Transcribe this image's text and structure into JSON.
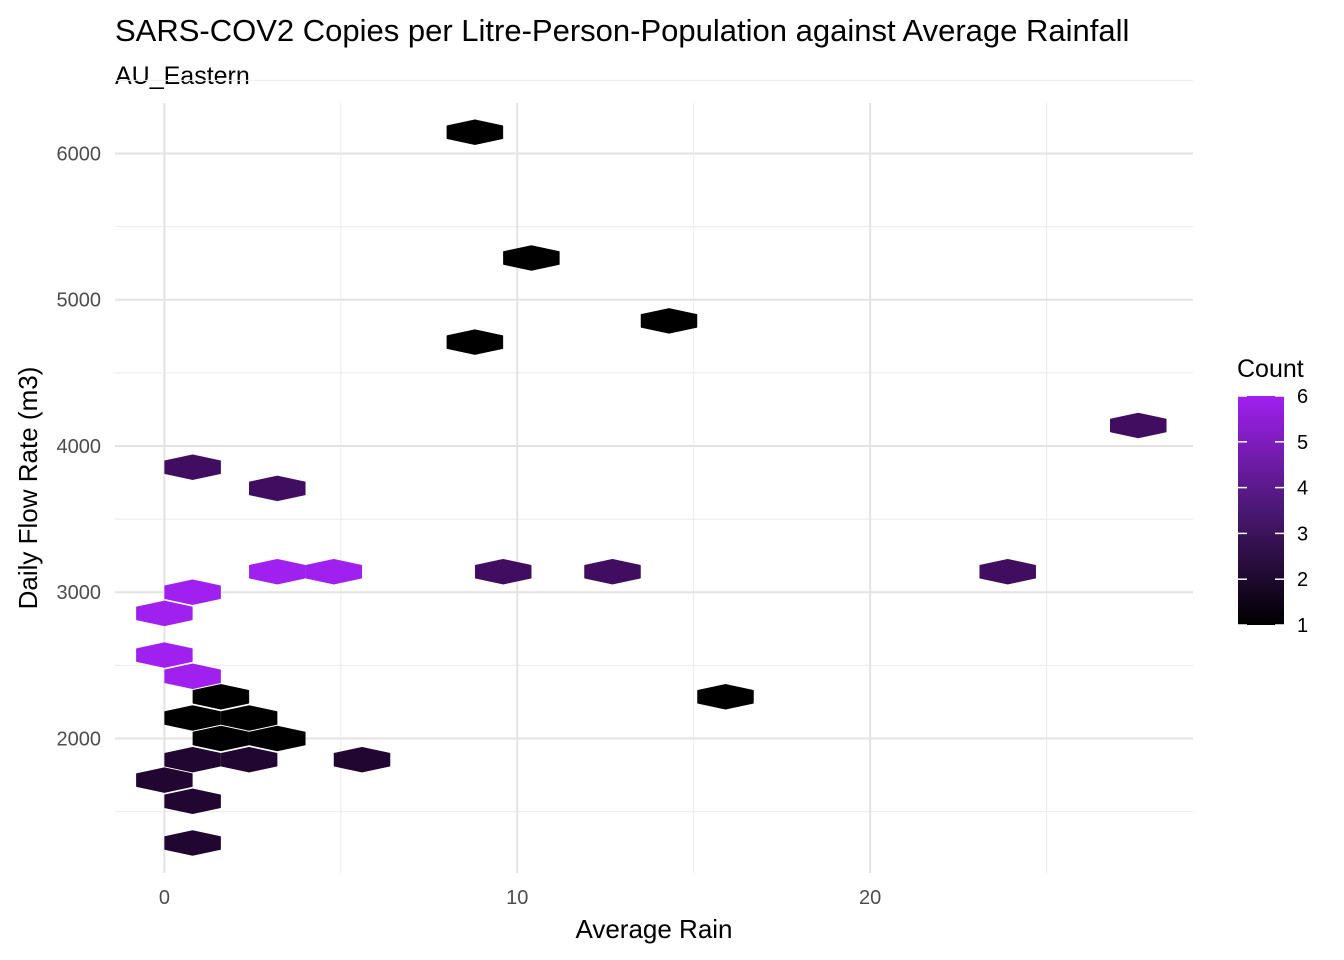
{
  "chart_data": {
    "type": "hexbin",
    "title": "SARS-COV2 Copies per Litre-Person-Population against Average Rainfall",
    "subtitle": "AU_Eastern",
    "xlabel": "Average Rain",
    "ylabel": "Daily Flow Rate (m3)",
    "xlim": [
      -1.4,
      29.15
    ],
    "ylim": [
      1080,
      6345
    ],
    "x_ticks": [
      0,
      10,
      20
    ],
    "y_ticks": [
      2000,
      3000,
      4000,
      5000,
      6000
    ],
    "grid": true,
    "legend": {
      "title": "Count",
      "position": "right",
      "min": 1,
      "max": 6,
      "ticks": [
        1,
        2,
        3,
        4,
        5,
        6
      ],
      "color_low": "#000000",
      "color_high": "#a020f0"
    },
    "bins": [
      {
        "x": 8.8,
        "y": 6145,
        "count": 1
      },
      {
        "x": 10.4,
        "y": 5285,
        "count": 1
      },
      {
        "x": 14.3,
        "y": 4855,
        "count": 1
      },
      {
        "x": 8.8,
        "y": 4710,
        "count": 1
      },
      {
        "x": 27.6,
        "y": 4140,
        "count": 3
      },
      {
        "x": 0.8,
        "y": 3855,
        "count": 3
      },
      {
        "x": 3.2,
        "y": 3710,
        "count": 3
      },
      {
        "x": 3.2,
        "y": 3140,
        "count": 6
      },
      {
        "x": 4.8,
        "y": 3140,
        "count": 6
      },
      {
        "x": 9.6,
        "y": 3140,
        "count": 3
      },
      {
        "x": 12.7,
        "y": 3140,
        "count": 3
      },
      {
        "x": 23.9,
        "y": 3140,
        "count": 3
      },
      {
        "x": 0.8,
        "y": 3000,
        "count": 6
      },
      {
        "x": 0.0,
        "y": 2855,
        "count": 6
      },
      {
        "x": 0.0,
        "y": 2570,
        "count": 6
      },
      {
        "x": 0.8,
        "y": 2425,
        "count": 6
      },
      {
        "x": 15.9,
        "y": 2285,
        "count": 1
      },
      {
        "x": 1.6,
        "y": 2285,
        "count": 1
      },
      {
        "x": 0.8,
        "y": 2140,
        "count": 1
      },
      {
        "x": 2.4,
        "y": 2140,
        "count": 1
      },
      {
        "x": 1.6,
        "y": 2000,
        "count": 1
      },
      {
        "x": 3.2,
        "y": 2000,
        "count": 1
      },
      {
        "x": 0.8,
        "y": 1855,
        "count": 2
      },
      {
        "x": 2.4,
        "y": 1855,
        "count": 2
      },
      {
        "x": 5.6,
        "y": 1855,
        "count": 2
      },
      {
        "x": 0.0,
        "y": 1715,
        "count": 2
      },
      {
        "x": 0.8,
        "y": 1570,
        "count": 2
      },
      {
        "x": 0.8,
        "y": 1285,
        "count": 2
      }
    ]
  }
}
